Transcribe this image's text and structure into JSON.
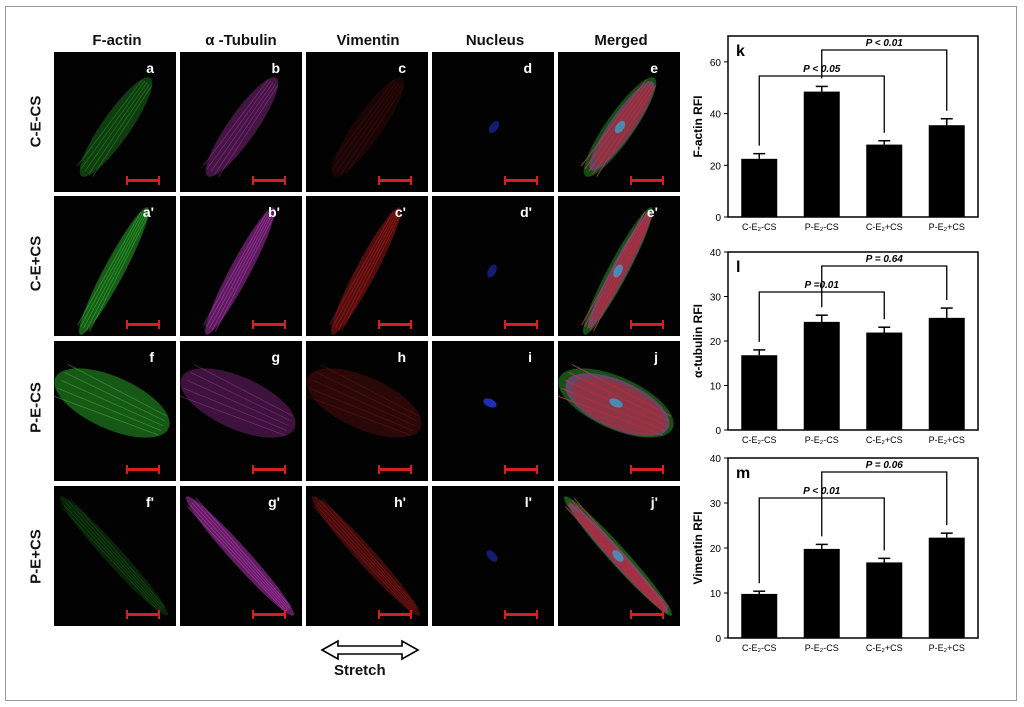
{
  "columns": [
    "F-actin",
    "α -Tubulin",
    "Vimentin",
    "Nucleus",
    "Merged"
  ],
  "rows": [
    "C-E-CS",
    "C-E+CS",
    "P-E-CS",
    "P-E+CS"
  ],
  "panel_letters": [
    [
      "a",
      "b",
      "c",
      "d",
      "e"
    ],
    [
      "a'",
      "b'",
      "c'",
      "d'",
      "e'"
    ],
    [
      "f",
      "g",
      "h",
      "i",
      "j"
    ],
    [
      "f'",
      "g'",
      "h'",
      "l'",
      "j'"
    ]
  ],
  "stretch_label": "Stretch",
  "colors": {
    "factin": "#2fb52f",
    "tubulin": "#c63cc6",
    "vimentin": "#c21f1f",
    "nucleus": "#2233cc",
    "scalebar": "#d81e1e",
    "bar": "#000000"
  },
  "chart_data": [
    {
      "type": "bar",
      "panel_letter": "k",
      "categories": [
        "C-E₂-CS",
        "P-E₂-CS",
        "C-E₂+CS",
        "P-E₂+CS"
      ],
      "values": [
        22.5,
        48.5,
        28,
        35.5
      ],
      "errors": [
        2,
        2,
        1.5,
        2.5
      ],
      "ylabel": "F-actin RFI",
      "ylim": [
        0,
        70
      ],
      "yticks": [
        0,
        20,
        40,
        60
      ],
      "annotations": [
        {
          "text": "P < 0.05",
          "from": 0,
          "to": 2
        },
        {
          "text": "P < 0.01",
          "from": 1,
          "to": 3
        }
      ]
    },
    {
      "type": "bar",
      "panel_letter": "l",
      "categories": [
        "C-E₂-CS",
        "P-E₂-CS",
        "C-E₂+CS",
        "P-E₂+CS"
      ],
      "values": [
        16.8,
        24.3,
        21.9,
        25.2
      ],
      "errors": [
        1.2,
        1.5,
        1.2,
        2.2
      ],
      "ylabel": "α-tubulin RFI",
      "ylim": [
        0,
        40
      ],
      "yticks": [
        0,
        10,
        20,
        30,
        40
      ],
      "annotations": [
        {
          "text": "P =0.01",
          "from": 0,
          "to": 2
        },
        {
          "text": "P = 0.64",
          "from": 1,
          "to": 3
        }
      ]
    },
    {
      "type": "bar",
      "panel_letter": "m",
      "categories": [
        "C-E₂-CS",
        "P-E₂-CS",
        "C-E₂+CS",
        "P-E₂+CS"
      ],
      "values": [
        9.8,
        19.8,
        16.8,
        22.3
      ],
      "errors": [
        0.6,
        1.0,
        0.9,
        1.0
      ],
      "ylabel": "Vimentin RFI",
      "ylim": [
        0,
        40
      ],
      "yticks": [
        0,
        10,
        20,
        30,
        40
      ],
      "annotations": [
        {
          "text": "P < 0.01",
          "from": 0,
          "to": 2
        },
        {
          "text": "P = 0.06",
          "from": 1,
          "to": 3
        }
      ]
    }
  ]
}
